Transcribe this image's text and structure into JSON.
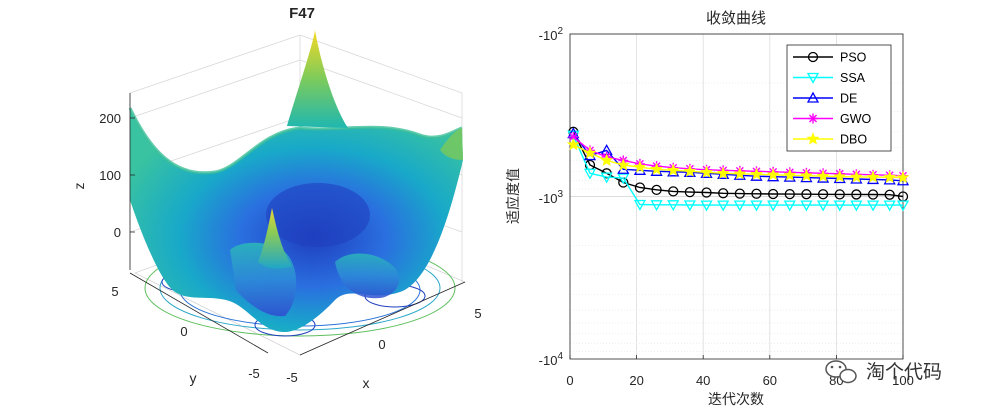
{
  "chart_data": [
    {
      "type": "surface",
      "title": "F47",
      "xlabel": "x",
      "ylabel": "y",
      "zlabel": "z",
      "xlim": [
        -5,
        5
      ],
      "ylim": [
        -5,
        5
      ],
      "zlim": [
        -40,
        250
      ],
      "xticks": [
        -5,
        0,
        5
      ],
      "yticks": [
        -5,
        0,
        5
      ],
      "zticks": [
        0,
        100,
        200
      ],
      "colormap": "parula",
      "contour_at_base": true
    },
    {
      "type": "line",
      "title": "收敛曲线",
      "xlabel": "迭代次数",
      "ylabel": "适应度值",
      "xlim": [
        0,
        100
      ],
      "xticks": [
        0,
        20,
        40,
        60,
        80,
        100
      ],
      "yscale": "log (negative values)",
      "ylim": [
        -10000,
        -100
      ],
      "yticks": [
        "-10^2",
        "-10^3",
        "-10^4"
      ],
      "grid": true,
      "legend_position": "top-right",
      "series": [
        {
          "name": "PSO",
          "color": "#000000",
          "marker": "circle",
          "x": [
            1,
            6,
            11,
            16,
            21,
            26,
            31,
            36,
            41,
            46,
            51,
            56,
            61,
            66,
            71,
            76,
            81,
            86,
            91,
            96,
            100
          ],
          "y": [
            -400,
            -640,
            -720,
            -820,
            -880,
            -910,
            -930,
            -940,
            -945,
            -955,
            -960,
            -962,
            -965,
            -967,
            -968,
            -969,
            -970,
            -971,
            -972,
            -975,
            -1000
          ]
        },
        {
          "name": "SSA",
          "color": "#00ffff",
          "marker": "triangle-down",
          "x": [
            1,
            6,
            11,
            16,
            21,
            26,
            31,
            36,
            41,
            46,
            51,
            56,
            61,
            66,
            71,
            76,
            81,
            86,
            91,
            96,
            100
          ],
          "y": [
            -420,
            -720,
            -760,
            -770,
            -1120,
            -1125,
            -1125,
            -1128,
            -1130,
            -1130,
            -1130,
            -1130,
            -1130,
            -1130,
            -1130,
            -1130,
            -1130,
            -1130,
            -1130,
            -1130,
            -1130
          ]
        },
        {
          "name": "DE",
          "color": "#0000ff",
          "marker": "triangle-up",
          "x": [
            1,
            6,
            11,
            16,
            21,
            26,
            31,
            36,
            41,
            46,
            51,
            56,
            61,
            66,
            71,
            76,
            81,
            86,
            91,
            96,
            100
          ],
          "y": [
            -410,
            -560,
            -520,
            -680,
            -690,
            -700,
            -705,
            -710,
            -720,
            -730,
            -740,
            -750,
            -755,
            -760,
            -765,
            -770,
            -775,
            -780,
            -785,
            -790,
            -800
          ]
        },
        {
          "name": "GWO",
          "color": "#ff00ff",
          "marker": "asterisk",
          "x": [
            1,
            6,
            11,
            16,
            21,
            26,
            31,
            36,
            41,
            46,
            51,
            56,
            61,
            66,
            71,
            76,
            81,
            86,
            91,
            96,
            100
          ],
          "y": [
            -430,
            -520,
            -570,
            -600,
            -630,
            -650,
            -665,
            -675,
            -685,
            -690,
            -695,
            -700,
            -705,
            -710,
            -715,
            -720,
            -725,
            -730,
            -735,
            -740,
            -745
          ]
        },
        {
          "name": "DBO",
          "color": "#ffff00",
          "marker": "star",
          "x": [
            1,
            6,
            11,
            16,
            21,
            26,
            31,
            36,
            41,
            46,
            51,
            56,
            61,
            66,
            71,
            76,
            81,
            86,
            91,
            96,
            100
          ],
          "y": [
            -480,
            -540,
            -600,
            -640,
            -660,
            -680,
            -690,
            -700,
            -710,
            -720,
            -725,
            -730,
            -735,
            -740,
            -745,
            -750,
            -755,
            -758,
            -760,
            -762,
            -765
          ]
        }
      ]
    }
  ],
  "watermark": {
    "text": "淘个代码"
  }
}
